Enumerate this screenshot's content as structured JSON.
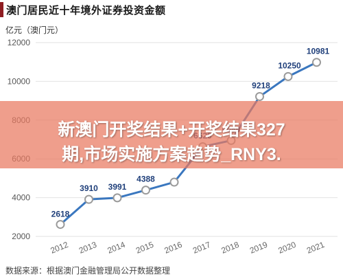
{
  "header": {
    "title": "澳门居民近十年境外证券投资金额"
  },
  "unit_label": "亿元（澳门元）",
  "overlay": {
    "line1": "新澳门开奖结果+开奖结果327",
    "line2": "期,市场实施方案趋势_RNY3."
  },
  "footer": {
    "source": "数据来源：根据澳门金融管理局公开数据整理"
  },
  "colors": {
    "line": "#3a77bf",
    "marker_fill": "#ffffff",
    "marker_stroke": "#9a9a9a",
    "grid": "#e2e2e2",
    "accent": "#8f1d22",
    "overlay": "#e97860"
  },
  "chart_data": {
    "type": "line",
    "title": "澳门居民近十年境外证券投资金额",
    "ylabel": "亿元（澳门元）",
    "xlabel": "",
    "categories": [
      "2012",
      "2013",
      "2014",
      "2015",
      "2016",
      "2017",
      "2018",
      "2019",
      "2020",
      "2021"
    ],
    "series": [
      {
        "name": "",
        "values": [
          2618,
          3910,
          3991,
          4388,
          4800,
          6629,
          6950,
          9218,
          10250,
          10981
        ]
      }
    ],
    "data_labels": [
      "2618",
      "3910",
      "3991",
      "4388",
      "",
      "6629",
      "6950",
      "9218",
      "10250",
      "10981"
    ],
    "x_ticks": [
      "2012",
      "2013",
      "2014",
      "2015",
      "2016",
      "2017",
      "2018",
      "2019",
      "2020",
      "2021"
    ],
    "y_ticks": [
      "2000",
      "4000",
      "6000",
      "8000",
      "10000",
      "12000"
    ],
    "ylim": [
      2000,
      12000
    ],
    "grid": true,
    "legend": "none"
  }
}
